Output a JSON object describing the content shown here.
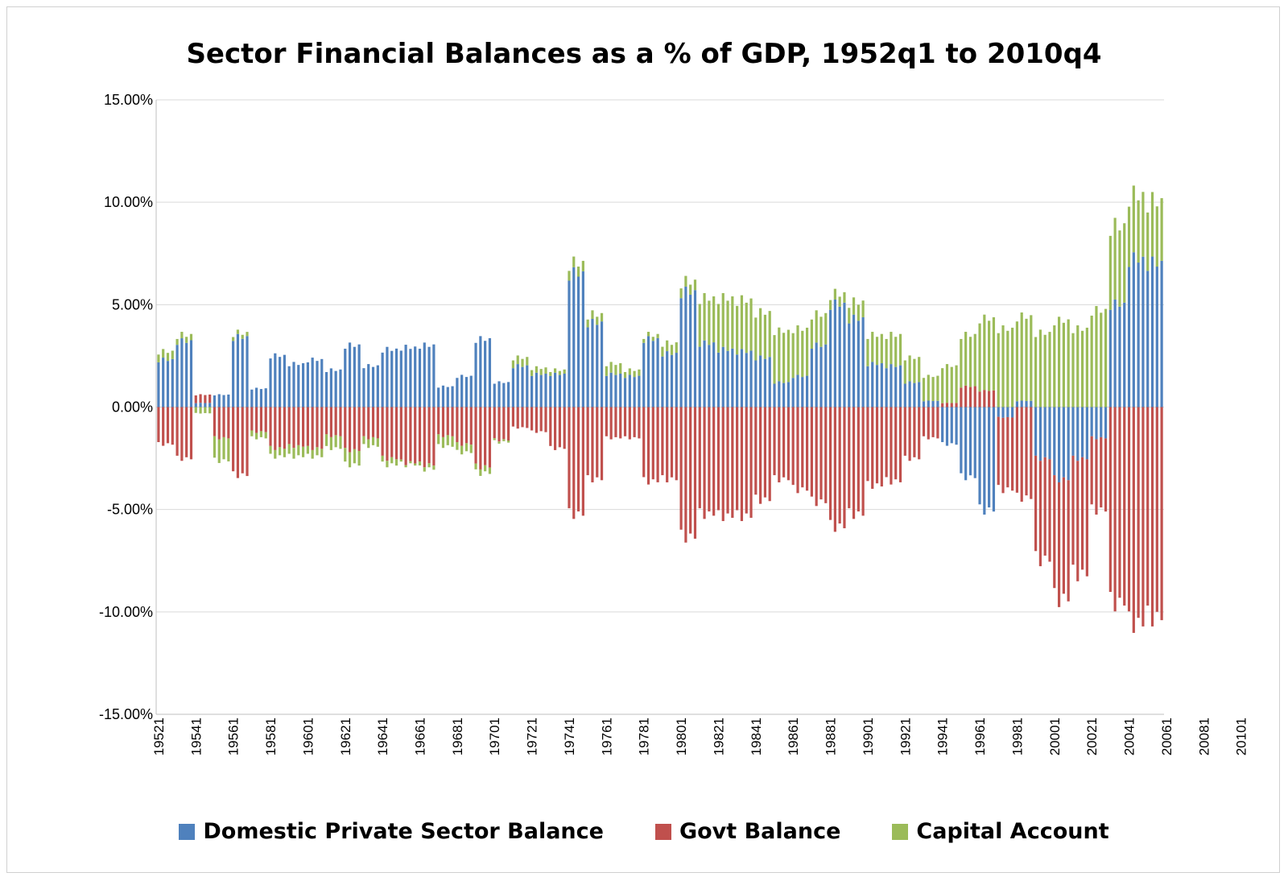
{
  "chart_data": {
    "type": "bar",
    "stacked": true,
    "title": "Sector Financial Balances as a % of GDP, 1952q1 to 2010q4",
    "xlabel": "",
    "ylabel": "",
    "ylim": [
      -15,
      15
    ],
    "yticks": [
      "15.00%",
      "10.00%",
      "5.00%",
      "0.00%",
      "-5.00%",
      "-10.00%",
      "-15.00%"
    ],
    "ytick_values": [
      15,
      10,
      5,
      0,
      -5,
      -10,
      -15
    ],
    "xtick_labels": [
      "19521",
      "19541",
      "19561",
      "19581",
      "19601",
      "19621",
      "19641",
      "19661",
      "19681",
      "19701",
      "19721",
      "19741",
      "19761",
      "19781",
      "19801",
      "19821",
      "19841",
      "19861",
      "19881",
      "19901",
      "19921",
      "19941",
      "19961",
      "19981",
      "20001",
      "20021",
      "20041",
      "20061",
      "20081",
      "20101"
    ],
    "x_start_year": 1952,
    "x_end_year": 2010,
    "grid": true,
    "legend_placement": "bottom",
    "colors": {
      "private": "#4f81bd",
      "govt": "#c0504d",
      "capital": "#9bbb59"
    },
    "quarterly_sampling": "annual averages of quarterly estimates; one bar per year-quarter approximated as 4 identical bars",
    "series": [
      {
        "name": "Domestic Private Sector Balance",
        "values": [
          2.3,
          3.2,
          0.2,
          0.6,
          3.4,
          0.9,
          2.5,
          2.1,
          2.3,
          1.8,
          3.0,
          2.0,
          2.8,
          2.9,
          3.0,
          1.0,
          1.5,
          3.3,
          1.2,
          2.0,
          1.6,
          1.6,
          6.5,
          4.1,
          1.6,
          1.5,
          3.3,
          2.6,
          5.6,
          3.1,
          2.8,
          2.7,
          2.4,
          1.2,
          1.5,
          3.0,
          5.0,
          4.3,
          2.1,
          2.0,
          1.2,
          0.3,
          -1.8,
          -3.4,
          -5.0,
          -0.5,
          0.3,
          -2.5,
          -3.5,
          -2.5,
          -1.5,
          5.0,
          7.2,
          7.0
        ]
      },
      {
        "name": "Govt Balance",
        "values": [
          -1.8,
          -2.5,
          0.4,
          -1.5,
          -3.3,
          -1.2,
          -2.0,
          -1.9,
          -2.0,
          -1.4,
          -2.1,
          -1.5,
          -2.5,
          -2.7,
          -2.8,
          -1.4,
          -1.8,
          -2.9,
          -1.6,
          -1.0,
          -1.2,
          -2.0,
          -5.2,
          -3.5,
          -1.5,
          -1.5,
          -3.6,
          -3.5,
          -6.3,
          -5.2,
          -5.3,
          -5.3,
          -4.5,
          -3.5,
          -4.0,
          -4.6,
          -5.8,
          -5.2,
          -3.8,
          -3.6,
          -2.5,
          -1.5,
          0.2,
          1.0,
          0.8,
          -3.5,
          -4.4,
          -4.9,
          -5.8,
          -5.6,
          -3.5,
          -9.5,
          -10.5,
          -10.2
        ]
      },
      {
        "name": "Capital Account",
        "values": [
          0.4,
          0.3,
          -0.3,
          -1.1,
          0.2,
          -0.3,
          -0.4,
          -0.5,
          -0.4,
          -0.6,
          -0.7,
          -0.4,
          -0.3,
          -0.1,
          -0.2,
          -0.5,
          -0.4,
          -0.3,
          -0.1,
          0.4,
          0.3,
          0.2,
          0.5,
          0.4,
          0.5,
          0.3,
          0.2,
          0.5,
          0.5,
          2.2,
          2.5,
          2.5,
          2.2,
          2.5,
          2.3,
          1.5,
          0.5,
          0.8,
          1.4,
          1.5,
          1.2,
          1.2,
          1.8,
          2.5,
          3.5,
          3.8,
          4.1,
          3.6,
          4.2,
          3.8,
          4.7,
          3.8,
          3.1,
          3.0
        ]
      }
    ]
  },
  "legend": {
    "items": [
      {
        "label": "Domestic Private Sector Balance",
        "color": "#4f81bd"
      },
      {
        "label": "Govt Balance",
        "color": "#c0504d"
      },
      {
        "label": "Capital Account",
        "color": "#9bbb59"
      }
    ]
  }
}
